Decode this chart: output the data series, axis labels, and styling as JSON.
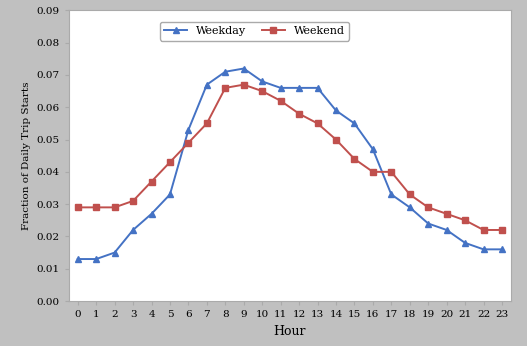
{
  "hours": [
    0,
    1,
    2,
    3,
    4,
    5,
    6,
    7,
    8,
    9,
    10,
    11,
    12,
    13,
    14,
    15,
    16,
    17,
    18,
    19,
    20,
    21,
    22,
    23
  ],
  "weekday": [
    0.013,
    0.013,
    0.015,
    0.022,
    0.027,
    0.033,
    0.053,
    0.067,
    0.071,
    0.072,
    0.068,
    0.066,
    0.066,
    0.066,
    0.059,
    0.055,
    0.047,
    0.033,
    0.029,
    0.024,
    0.022,
    0.018,
    0.016,
    0.016
  ],
  "weekend": [
    0.029,
    0.029,
    0.029,
    0.031,
    0.037,
    0.043,
    0.049,
    0.055,
    0.066,
    0.067,
    0.065,
    0.062,
    0.058,
    0.055,
    0.05,
    0.044,
    0.04,
    0.04,
    0.033,
    0.029,
    0.027,
    0.025,
    0.022,
    0.022
  ],
  "weekday_color": "#4472C4",
  "weekend_color": "#C0504D",
  "xlabel": "Hour",
  "ylabel": "Fraction of Daily Trip Starts",
  "ylim": [
    0.0,
    0.09
  ],
  "yticks": [
    0.0,
    0.01,
    0.02,
    0.03,
    0.04,
    0.05,
    0.06,
    0.07,
    0.08,
    0.09
  ],
  "background_color": "#C0C0C0",
  "plot_background": "#FFFFFF",
  "legend_weekday": "Weekday",
  "legend_weekend": "Weekend",
  "marker_weekday": "^",
  "marker_weekend": "s",
  "linewidth": 1.4,
  "markersize": 4
}
